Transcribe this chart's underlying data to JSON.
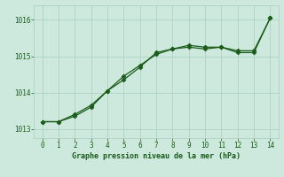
{
  "line1_x": [
    0,
    1,
    2,
    3,
    4,
    5,
    6,
    7,
    8,
    9,
    10,
    11,
    12,
    13,
    14
  ],
  "line1_y": [
    1013.2,
    1013.2,
    1013.35,
    1013.6,
    1014.05,
    1014.35,
    1014.7,
    1015.1,
    1015.2,
    1015.3,
    1015.25,
    1015.25,
    1015.1,
    1015.1,
    1016.05
  ],
  "line2_x": [
    0,
    1,
    2,
    3,
    4,
    5,
    6,
    7,
    8,
    9,
    10,
    11,
    12,
    13,
    14
  ],
  "line2_y": [
    1013.2,
    1013.2,
    1013.4,
    1013.65,
    1014.05,
    1014.45,
    1014.75,
    1015.05,
    1015.2,
    1015.25,
    1015.2,
    1015.25,
    1015.15,
    1015.15,
    1016.05
  ],
  "line_color": "#1a5c1a",
  "marker": "D",
  "marker_size": 2.5,
  "xlabel": "Graphe pression niveau de la mer (hPa)",
  "xlim": [
    -0.5,
    14.5
  ],
  "ylim": [
    1012.75,
    1016.4
  ],
  "yticks": [
    1013,
    1014,
    1015,
    1016
  ],
  "xticks": [
    0,
    1,
    2,
    3,
    4,
    5,
    6,
    7,
    8,
    9,
    10,
    11,
    12,
    13,
    14
  ],
  "bg_color": "#cde8dc",
  "grid_color": "#aacfbe"
}
